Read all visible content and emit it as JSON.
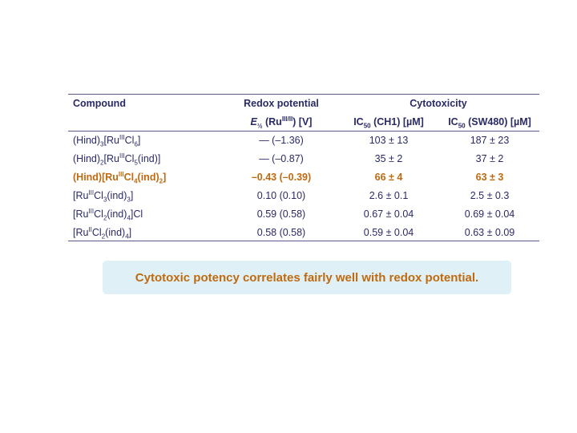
{
  "table": {
    "header1": {
      "compound": "Compound",
      "redox": "Redox potential",
      "cytotoxicity": "Cytotoxicity"
    },
    "header2": {
      "e_half_base": "E",
      "e_half_sub": "½",
      "e_half_rest": " (Ru",
      "e_half_sup": "III/II",
      "e_half_unit": ") [V]",
      "ic50_ch1_base": "IC",
      "ic50_ch1_sub": "50",
      "ic50_ch1_rest": " (CH1) [µM]",
      "ic50_sw_base": "IC",
      "ic50_sw_sub": "50",
      "ic50_sw_rest": " (SW480) [µM]"
    },
    "rows": [
      {
        "compound": [
          "(Hind)",
          "3",
          "[Ru",
          "III",
          "Cl",
          "6",
          "]"
        ],
        "redox": "— (–1.36)",
        "ch1": "103 ± 13",
        "sw480": "187 ± 23",
        "highlight": false
      },
      {
        "compound": [
          "(Hind)",
          "2",
          "[Ru",
          "III",
          "Cl",
          "5",
          "(ind)]"
        ],
        "redox": "— (–0.87)",
        "ch1": "35 ± 2",
        "sw480": "37 ± 2",
        "highlight": false
      },
      {
        "compound": [
          "(Hind)[Ru",
          "",
          "",
          "III",
          "Cl",
          "4",
          "(ind)",
          "2",
          "]"
        ],
        "redox": "–0.43 (–0.39)",
        "ch1": "66 ± 4",
        "sw480": "63 ± 3",
        "highlight": true
      },
      {
        "compound": [
          "[Ru",
          "",
          "",
          "III",
          "Cl",
          "3",
          "(ind)",
          "3",
          "]"
        ],
        "redox": "0.10 (0.10)",
        "ch1": "2.6 ± 0.1",
        "sw480": "2.5 ± 0.3",
        "highlight": false
      },
      {
        "compound": [
          "[Ru",
          "",
          "",
          "III",
          "Cl",
          "2",
          "(ind)",
          "4",
          "]Cl"
        ],
        "redox": "0.59 (0.58)",
        "ch1": "0.67 ± 0.04",
        "sw480": "0.69 ± 0.04",
        "highlight": false
      },
      {
        "compound": [
          "[Ru",
          "",
          "",
          "II",
          "Cl",
          "2",
          "(ind)",
          "4",
          "]"
        ],
        "redox": "0.58 (0.58)",
        "ch1": "0.59 ± 0.04",
        "sw480": "0.63 ± 0.09",
        "highlight": false
      }
    ]
  },
  "banner": {
    "text": "Cytotoxic potency correlates fairly well with redox potential."
  },
  "colors": {
    "text": "#2a2a66",
    "highlight": "#c06a10",
    "banner_bg": "#dff1f6"
  }
}
